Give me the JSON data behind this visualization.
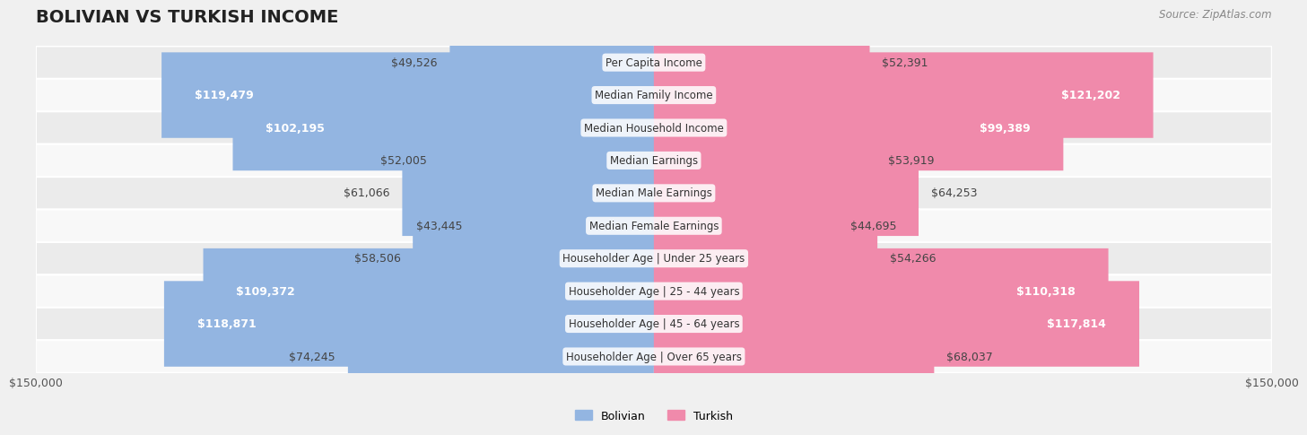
{
  "title": "BOLIVIAN VS TURKISH INCOME",
  "source": "Source: ZipAtlas.com",
  "max_value": 150000,
  "categories": [
    "Per Capita Income",
    "Median Family Income",
    "Median Household Income",
    "Median Earnings",
    "Median Male Earnings",
    "Median Female Earnings",
    "Householder Age | Under 25 years",
    "Householder Age | 25 - 44 years",
    "Householder Age | 45 - 64 years",
    "Householder Age | Over 65 years"
  ],
  "bolivian_values": [
    49526,
    119479,
    102195,
    52005,
    61066,
    43445,
    58506,
    109372,
    118871,
    74245
  ],
  "turkish_values": [
    52391,
    121202,
    99389,
    53919,
    64253,
    44695,
    54266,
    110318,
    117814,
    68037
  ],
  "bolivian_color": "#93b5e1",
  "turkish_color": "#f08aab",
  "bolivian_color_dark": "#6699cc",
  "turkish_color_dark": "#e05580",
  "bolivian_label": "Bolivian",
  "turkish_label": "Turkish",
  "label_threshold": 90000,
  "bg_color": "#f5f5f5",
  "row_bg_color": "#ebebeb",
  "row_alt_bg": "#f8f8f8",
  "title_fontsize": 14,
  "value_fontsize": 9,
  "category_fontsize": 8.5
}
